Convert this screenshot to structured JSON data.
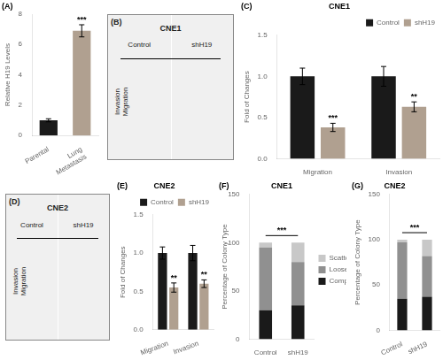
{
  "chart_data": [
    {
      "type": "bar",
      "categories": [
        "Parental",
        "Lung\nMetastasis"
      ],
      "values": [
        1.0,
        6.9
      ],
      "errors": [
        0.1,
        0.4
      ],
      "colors": [
        "#1a1a1a",
        "#b0a090"
      ],
      "ylabel": "Relative H19 Levels",
      "ylim": [
        0,
        8
      ],
      "yticks": [
        0,
        2,
        4,
        6,
        8
      ],
      "grid": false,
      "annotations": [
        {
          "text": "(A)"
        },
        {
          "text": "***",
          "category": "Lung\nMetastasis"
        }
      ]
    },
    {
      "type": "image",
      "title": "CNE1",
      "categories": [
        "Control",
        "shH19"
      ],
      "ylabel": "Invasion\nMigration",
      "annotations": [
        {
          "text": "(B)"
        }
      ]
    },
    {
      "type": "bar",
      "title": "CNE1",
      "categories": [
        "Migration",
        "Invasion"
      ],
      "series": [
        {
          "name": "Control",
          "color": "#1a1a1a",
          "values": [
            1.0,
            1.0
          ],
          "errors": [
            0.1,
            0.12
          ]
        },
        {
          "name": "shH19",
          "color": "#b0a090",
          "values": [
            0.38,
            0.63
          ],
          "errors": [
            0.05,
            0.06
          ]
        }
      ],
      "ylabel": "Fold of Changes",
      "ylim": [
        0,
        1.5
      ],
      "yticks": [
        {
          "value": 0,
          "label": "0.0"
        },
        0.5,
        {
          "value": 1,
          "label": "1.0"
        },
        1.5
      ],
      "grid": false,
      "legend": "upper right",
      "annotations": [
        {
          "text": "(C)"
        },
        {
          "text": "***",
          "category": "Migration",
          "series": "shH19"
        },
        {
          "text": "**",
          "category": "Invasion",
          "series": "shH19"
        }
      ]
    },
    {
      "type": "image",
      "title": "CNE2",
      "categories": [
        "Control",
        "shH19"
      ],
      "ylabel": "Invasion\nMigration",
      "annotations": [
        {
          "text": "(D)"
        }
      ]
    },
    {
      "type": "bar",
      "title": "CNE2",
      "categories": [
        "Migration",
        "Invasion"
      ],
      "series": [
        {
          "name": "Control",
          "color": "#1a1a1a",
          "values": [
            1.0,
            1.0
          ],
          "errors": [
            0.08,
            0.1
          ]
        },
        {
          "name": "shH19",
          "color": "#b0a090",
          "values": [
            0.55,
            0.6
          ],
          "errors": [
            0.06,
            0.05
          ]
        }
      ],
      "ylabel": "Fold of Changes",
      "ylim": [
        0,
        1.5
      ],
      "yticks": [
        {
          "value": 0,
          "label": "0.0"
        },
        0.5,
        {
          "value": 1,
          "label": "1.0"
        },
        1.5
      ],
      "grid": false,
      "legend": "upper right",
      "annotations": [
        {
          "text": "(E)"
        },
        {
          "text": "**",
          "category": "Migration",
          "series": "shH19"
        },
        {
          "text": "**",
          "category": "Invasion",
          "series": "shH19"
        }
      ]
    },
    {
      "type": "bar",
      "title": "CNE1",
      "categories": [
        "Control",
        "shH19"
      ],
      "stacked": true,
      "series": [
        {
          "name": "Compact",
          "color": "#1a1a1a",
          "values": [
            30,
            35
          ]
        },
        {
          "name": "Loose",
          "color": "#909090",
          "values": [
            65,
            45
          ]
        },
        {
          "name": "Scattered",
          "color": "#c8c8c8",
          "values": [
            5,
            20
          ]
        }
      ],
      "ylabel": "Percentage of Colony Type",
      "ylim": [
        0,
        150
      ],
      "yticks": [
        0,
        50,
        100,
        150
      ],
      "grid": false,
      "legend": "right",
      "annotations": [
        {
          "text": "(F)"
        },
        {
          "text": "***",
          "categories": [
            "Control",
            "shH19"
          ]
        }
      ]
    },
    {
      "type": "bar",
      "title": "CNE2",
      "categories": [
        "Control",
        "shH19"
      ],
      "stacked": true,
      "series": [
        {
          "name": "Compact",
          "color": "#1a1a1a",
          "values": [
            35,
            37
          ]
        },
        {
          "name": "Loose",
          "color": "#909090",
          "values": [
            62,
            45
          ]
        },
        {
          "name": "Scattered",
          "color": "#c8c8c8",
          "values": [
            3,
            18
          ]
        }
      ],
      "ylabel": "Percentage of Colony Type",
      "ylim": [
        0,
        150
      ],
      "yticks": [
        0,
        50,
        100,
        150
      ],
      "grid": false,
      "annotations": [
        {
          "text": "(G)"
        },
        {
          "text": "***",
          "categories": [
            "Control",
            "shH19"
          ]
        }
      ]
    }
  ]
}
